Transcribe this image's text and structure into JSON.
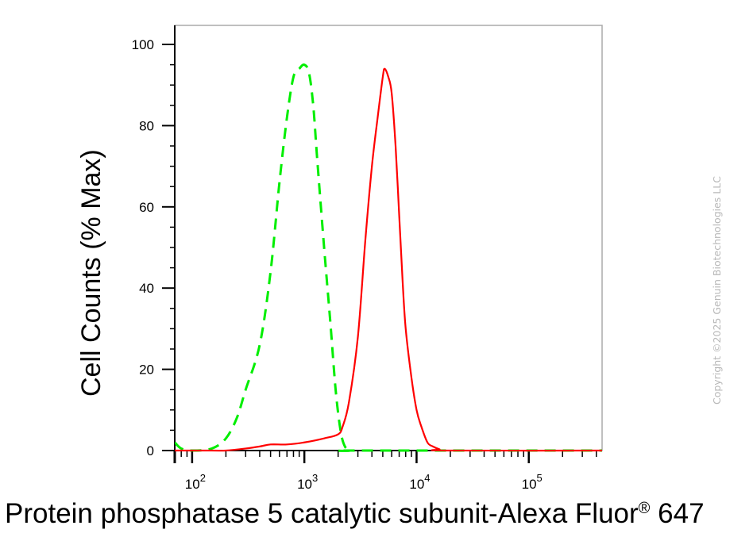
{
  "chart_data": {
    "type": "line",
    "title": "",
    "xlabel_main": "Protein phosphatase 5 catalytic subunit-Alexa Fluor",
    "xlabel_reg": "®",
    "xlabel_tail": " 647",
    "ylabel": "Cell Counts (% Max)",
    "x_scale": "log",
    "xlim": [
      70,
      450000
    ],
    "ylim": [
      0,
      100
    ],
    "y_ticks": [
      0,
      20,
      40,
      60,
      80,
      100
    ],
    "y_tick_labels": [
      "0",
      "20",
      "40",
      "60",
      "80",
      "100"
    ],
    "x_ticks": [
      100,
      1000,
      10000,
      100000
    ],
    "x_tick_labels": [
      {
        "base": "10",
        "exp": "2"
      },
      {
        "base": "10",
        "exp": "3"
      },
      {
        "base": "10",
        "exp": "4"
      },
      {
        "base": "10",
        "exp": "5"
      }
    ],
    "series": [
      {
        "color": "#00ee00",
        "dashed": true,
        "x": [
          70,
          80,
          100,
          150,
          200,
          250,
          300,
          400,
          500,
          600,
          700,
          800,
          900,
          1000,
          1100,
          1200,
          1300,
          1500,
          1700,
          1900,
          2100,
          2300,
          2600,
          3000,
          500000
        ],
        "y": [
          2,
          0.5,
          0,
          0.5,
          3,
          8,
          15,
          26,
          44,
          66,
          82,
          92,
          94,
          95,
          93,
          85,
          72,
          50,
          32,
          15,
          5,
          1,
          0,
          0,
          0
        ]
      },
      {
        "color": "#ff0000",
        "dashed": false,
        "x": [
          70,
          150,
          200,
          300,
          400,
          500,
          700,
          1000,
          1500,
          2000,
          2200,
          2500,
          3000,
          3500,
          4000,
          4500,
          5000,
          5200,
          5600,
          6000,
          6500,
          7000,
          7500,
          8000,
          9000,
          10000,
          11000,
          12500,
          14000,
          16000,
          18000,
          500000
        ],
        "y": [
          0,
          0,
          0,
          0.5,
          1,
          1.5,
          1.5,
          2,
          3,
          4,
          6,
          12,
          28,
          52,
          70,
          82,
          92,
          94,
          92,
          88,
          75,
          58,
          42,
          30,
          18,
          10,
          6,
          2,
          1,
          0.3,
          0,
          0
        ]
      }
    ]
  },
  "copyright": "Copyright ©2025 Genuin Biotechnologies LLC"
}
